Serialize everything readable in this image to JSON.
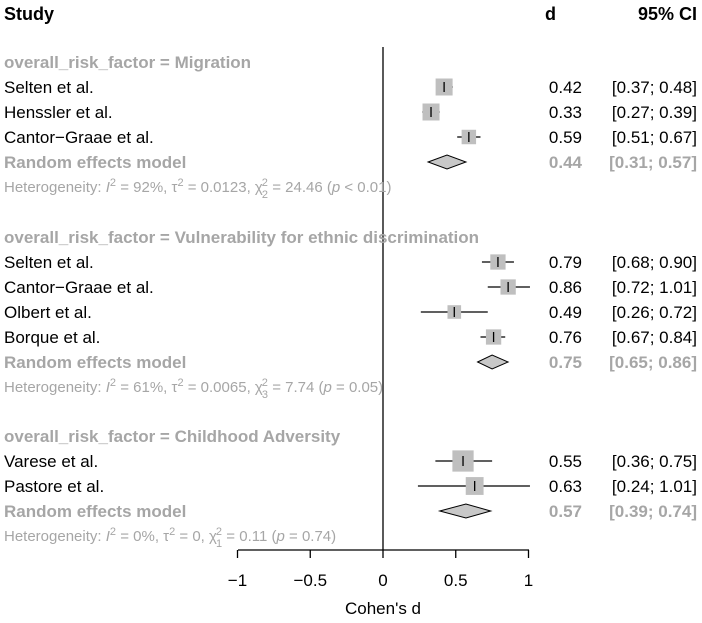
{
  "chart_data": {
    "type": "forest",
    "header": {
      "study": "Study",
      "effect": "d",
      "ci": "95% CI"
    },
    "xlabel": "Cohen's d",
    "xlim": [
      -1,
      1
    ],
    "x_ticks": [
      -1,
      -0.5,
      0,
      0.5,
      1
    ],
    "x_tick_labels": [
      "−1",
      "−0.5",
      "0",
      "0.5",
      "1"
    ],
    "colors": {
      "text": "#000000",
      "muted": "#a6a6a6",
      "square": "#bfbfbf",
      "diamond": "#c8c8c8"
    },
    "groups": [
      {
        "title": "overall_risk_factor = Migration",
        "studies": [
          {
            "name": "Selten et al.",
            "d": 0.42,
            "lo": 0.37,
            "hi": 0.48,
            "d_label": "0.42",
            "ci_label": "[0.37; 0.48]",
            "weight": 1.0
          },
          {
            "name": "Henssler et al.",
            "d": 0.33,
            "lo": 0.27,
            "hi": 0.39,
            "d_label": "0.33",
            "ci_label": "[0.27; 0.39]",
            "weight": 1.0
          },
          {
            "name": "Cantor−Graae et al.",
            "d": 0.59,
            "lo": 0.51,
            "hi": 0.67,
            "d_label": "0.59",
            "ci_label": "[0.51; 0.67]",
            "weight": 0.85
          }
        ],
        "pooled": {
          "name": "Random effects model",
          "d": 0.44,
          "lo": 0.31,
          "hi": 0.57,
          "d_label": "0.44",
          "ci_label": "[0.31; 0.57]"
        },
        "heterogeneity": {
          "prefix": "Heterogeneity: ",
          "i2": "92%",
          "tau2": "0.0123",
          "df": "2",
          "chi2": "24.46",
          "p": "< 0.01"
        }
      },
      {
        "title": "overall_risk_factor = Vulnerability for ethnic discrimination",
        "studies": [
          {
            "name": "Selten et al.",
            "d": 0.79,
            "lo": 0.68,
            "hi": 0.9,
            "d_label": "0.79",
            "ci_label": "[0.68; 0.90]",
            "weight": 0.9
          },
          {
            "name": "Cantor−Graae et al.",
            "d": 0.86,
            "lo": 0.72,
            "hi": 1.01,
            "d_label": "0.86",
            "ci_label": "[0.72; 1.01]",
            "weight": 0.9
          },
          {
            "name": "Olbert et al.",
            "d": 0.49,
            "lo": 0.26,
            "hi": 0.72,
            "d_label": "0.49",
            "ci_label": "[0.26; 0.72]",
            "weight": 0.8
          },
          {
            "name": "Borque et al.",
            "d": 0.76,
            "lo": 0.67,
            "hi": 0.84,
            "d_label": "0.76",
            "ci_label": "[0.67; 0.84]",
            "weight": 0.9
          }
        ],
        "pooled": {
          "name": "Random effects model",
          "d": 0.75,
          "lo": 0.65,
          "hi": 0.86,
          "d_label": "0.75",
          "ci_label": "[0.65; 0.86]"
        },
        "heterogeneity": {
          "prefix": "Heterogeneity: ",
          "i2": "61%",
          "tau2": "0.0065",
          "df": "3",
          "chi2": "7.74",
          "p": "= 0.05"
        }
      },
      {
        "title": "overall_risk_factor = Childhood Adversity",
        "studies": [
          {
            "name": "Varese et al.",
            "d": 0.55,
            "lo": 0.36,
            "hi": 0.75,
            "d_label": "0.55",
            "ci_label": "[0.36; 0.75]",
            "weight": 1.25
          },
          {
            "name": "Pastore et al.",
            "d": 0.63,
            "lo": 0.24,
            "hi": 1.01,
            "d_label": "0.63",
            "ci_label": "[0.24; 1.01]",
            "weight": 1.05
          }
        ],
        "pooled": {
          "name": "Random effects model",
          "d": 0.57,
          "lo": 0.39,
          "hi": 0.74,
          "d_label": "0.57",
          "ci_label": "[0.39; 0.74]"
        },
        "heterogeneity": {
          "prefix": "Heterogeneity: ",
          "i2": "0%",
          "tau2": "0",
          "df": "1",
          "chi2": "0.11",
          "p": "= 0.74"
        }
      }
    ]
  }
}
